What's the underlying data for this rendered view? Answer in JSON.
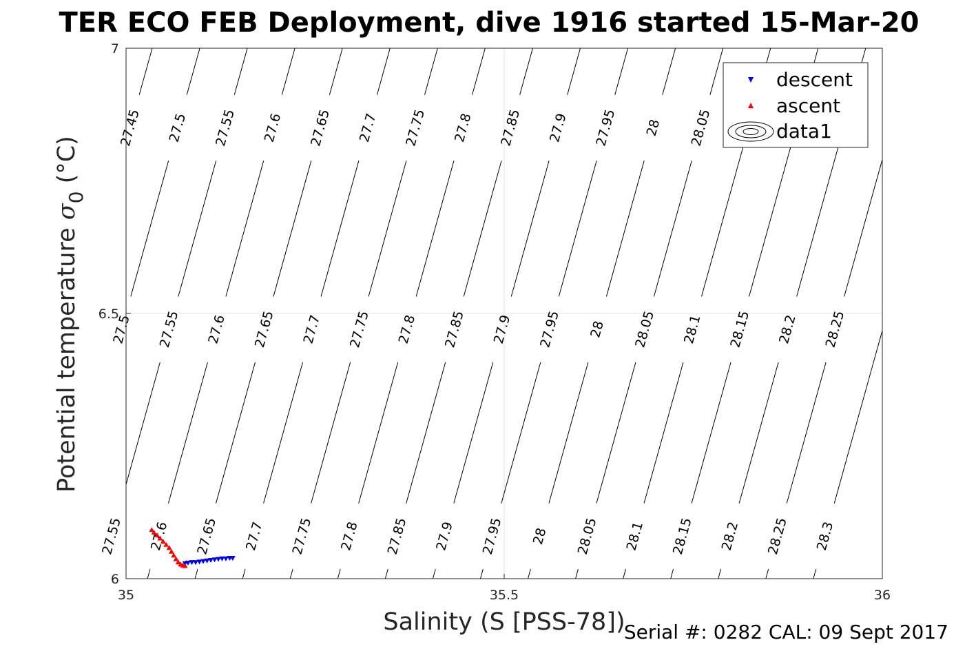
{
  "chart_data": {
    "type": "scatter",
    "title": "TER ECO FEB Deployment, dive 1916 started 15-Mar-20",
    "xlabel": "Salinity (S [PSS-78])",
    "ylabel_main": "Potential temperature ",
    "ylabel_symbol": "σ",
    "ylabel_subscript": "0",
    "ylabel_unit": " (°C)",
    "xlim": [
      35,
      36
    ],
    "ylim": [
      6,
      7
    ],
    "x_ticks": [
      35,
      35.5,
      36
    ],
    "x_tick_labels": [
      "35",
      "35.5",
      "36"
    ],
    "y_ticks": [
      6,
      6.5,
      7
    ],
    "y_tick_labels": [
      "6",
      "6.5",
      "7"
    ],
    "grid": true,
    "legend_position": "top-right",
    "legend": [
      {
        "label": "descent",
        "marker": "triangle-down",
        "color": "#0000ff"
      },
      {
        "label": "ascent",
        "marker": "triangle-up",
        "color": "#ff0000"
      },
      {
        "label": "data1",
        "marker": "contour",
        "color": "#000000"
      }
    ],
    "contour_levels": [
      27.45,
      27.5,
      27.55,
      27.6,
      27.65,
      27.7,
      27.75,
      27.8,
      27.85,
      27.9,
      27.95,
      28,
      28.05,
      28.1,
      28.15,
      28.2,
      28.25,
      28.3
    ],
    "contour_labels_row_top": {
      "theta": 6.85,
      "levels": [
        "27.45",
        "27.5",
        "27.55",
        "27.6",
        "27.65",
        "27.7",
        "27.75",
        "27.8",
        "27.85",
        "27.9",
        "27.95",
        "28",
        "28.05"
      ]
    },
    "contour_labels_row_mid": {
      "theta": 6.47,
      "levels": [
        "27.5",
        "27.55",
        "27.6",
        "27.65",
        "27.7",
        "27.75",
        "27.8",
        "27.85",
        "27.9",
        "27.95",
        "28",
        "28.05",
        "28.1",
        "28.15",
        "28.2",
        "28.25"
      ]
    },
    "contour_labels_row_bottom": {
      "theta": 6.08,
      "levels": [
        "27.55",
        "27.6",
        "27.65",
        "27.7",
        "27.75",
        "27.8",
        "27.85",
        "27.9",
        "27.95",
        "28",
        "28.05",
        "28.1",
        "28.15",
        "28.2",
        "28.25",
        "28.3"
      ]
    },
    "series": [
      {
        "name": "descent",
        "color": "#0000ff",
        "marker": "triangle-down",
        "x": [
          35.078,
          35.082,
          35.087,
          35.092,
          35.097,
          35.102,
          35.107,
          35.112,
          35.117,
          35.122,
          35.127,
          35.132,
          35.137,
          35.141
        ],
        "y": [
          6.029,
          6.03,
          6.031,
          6.031,
          6.032,
          6.033,
          6.034,
          6.035,
          6.036,
          6.037,
          6.038,
          6.038,
          6.039,
          6.039
        ]
      },
      {
        "name": "ascent",
        "color": "#ff0000",
        "marker": "triangle-up",
        "x": [
          35.034,
          35.037,
          35.041,
          35.045,
          35.049,
          35.053,
          35.057,
          35.06,
          35.063,
          35.066,
          35.069,
          35.072,
          35.075,
          35.078
        ],
        "y": [
          6.092,
          6.087,
          6.082,
          6.076,
          6.07,
          6.064,
          6.058,
          6.051,
          6.044,
          6.037,
          6.031,
          6.027,
          6.025,
          6.024
        ]
      }
    ]
  },
  "footer": {
    "serial": "Serial #: 0282  CAL: 09 Sept 2017"
  }
}
